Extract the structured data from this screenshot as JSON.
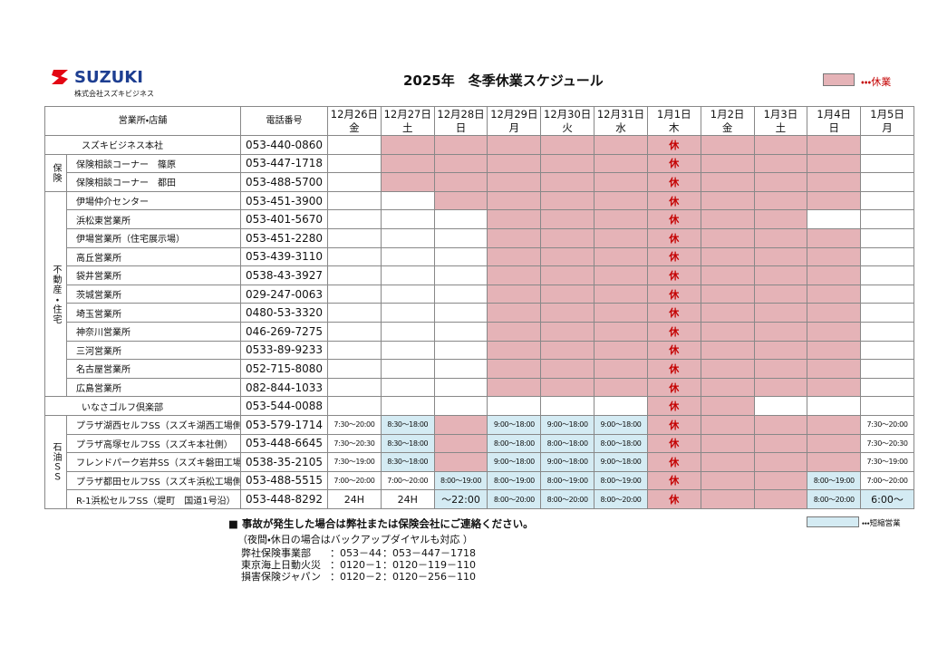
{
  "header": {
    "logo": "SUZUKI",
    "company": "株式会社スズキビジネス",
    "title": "2025年　冬季休業スケジュール",
    "legend_closed": "・・・休業"
  },
  "table": {
    "head_office": "営業所・店舗",
    "head_phone": "電話番号",
    "columns": [
      {
        "date": "12月26日",
        "weekday": "金"
      },
      {
        "date": "12月27日",
        "weekday": "土"
      },
      {
        "date": "12月28日",
        "weekday": "日"
      },
      {
        "date": "12月29日",
        "weekday": "月"
      },
      {
        "date": "12月30日",
        "weekday": "火"
      },
      {
        "date": "12月31日",
        "weekday": "水"
      },
      {
        "date": "1月1日",
        "weekday": "木"
      },
      {
        "date": "1月2日",
        "weekday": "金"
      },
      {
        "date": "1月3日",
        "weekday": "土"
      },
      {
        "date": "1月4日",
        "weekday": "日"
      },
      {
        "date": "1月5日",
        "weekday": "月"
      }
    ],
    "groups": [
      {
        "label": "保険",
        "rows": [
          1,
          2
        ]
      },
      {
        "label": "不動産・住宅",
        "rows": [
          3,
          13
        ]
      },
      {
        "label": "石油ＳＳ",
        "rows": [
          15,
          19
        ]
      }
    ],
    "rows": [
      {
        "name": "スズキビジネス本社",
        "phone": "053-440-0860",
        "cells": [
          {
            "state": "open"
          },
          {
            "state": "closed"
          },
          {
            "state": "closed"
          },
          {
            "state": "closed"
          },
          {
            "state": "closed"
          },
          {
            "state": "closed"
          },
          {
            "state": "closed",
            "text": "休"
          },
          {
            "state": "closed"
          },
          {
            "state": "closed"
          },
          {
            "state": "closed"
          },
          {
            "state": "open"
          }
        ]
      },
      {
        "name": "保険相談コーナー　篠原",
        "phone": "053-447-1718",
        "cells": [
          {
            "state": "open"
          },
          {
            "state": "closed"
          },
          {
            "state": "closed"
          },
          {
            "state": "closed"
          },
          {
            "state": "closed"
          },
          {
            "state": "closed"
          },
          {
            "state": "closed",
            "text": "休"
          },
          {
            "state": "closed"
          },
          {
            "state": "closed"
          },
          {
            "state": "closed"
          },
          {
            "state": "open"
          }
        ]
      },
      {
        "name": "保険相談コーナー　都田",
        "phone": "053-488-5700",
        "cells": [
          {
            "state": "open"
          },
          {
            "state": "closed"
          },
          {
            "state": "closed"
          },
          {
            "state": "closed"
          },
          {
            "state": "closed"
          },
          {
            "state": "closed"
          },
          {
            "state": "closed",
            "text": "休"
          },
          {
            "state": "closed"
          },
          {
            "state": "closed"
          },
          {
            "state": "closed"
          },
          {
            "state": "open"
          }
        ]
      },
      {
        "name": "伊場仲介センター",
        "phone": "053-451-3900",
        "cells": [
          {
            "state": "open"
          },
          {
            "state": "open"
          },
          {
            "state": "closed"
          },
          {
            "state": "closed"
          },
          {
            "state": "closed"
          },
          {
            "state": "closed"
          },
          {
            "state": "closed",
            "text": "休"
          },
          {
            "state": "closed"
          },
          {
            "state": "closed"
          },
          {
            "state": "closed"
          },
          {
            "state": "open"
          }
        ]
      },
      {
        "name": "浜松東営業所",
        "phone": "053-401-5670",
        "cells": [
          {
            "state": "open"
          },
          {
            "state": "open"
          },
          {
            "state": "open"
          },
          {
            "state": "closed"
          },
          {
            "state": "closed"
          },
          {
            "state": "closed"
          },
          {
            "state": "closed",
            "text": "休"
          },
          {
            "state": "closed"
          },
          {
            "state": "closed"
          },
          {
            "state": "open"
          },
          {
            "state": "open"
          }
        ]
      },
      {
        "name": "伊場営業所（住宅展示場）",
        "phone": "053-451-2280",
        "cells": [
          {
            "state": "open"
          },
          {
            "state": "open"
          },
          {
            "state": "open"
          },
          {
            "state": "closed"
          },
          {
            "state": "closed"
          },
          {
            "state": "closed"
          },
          {
            "state": "closed",
            "text": "休"
          },
          {
            "state": "closed"
          },
          {
            "state": "closed"
          },
          {
            "state": "closed"
          },
          {
            "state": "open"
          }
        ]
      },
      {
        "name": "高丘営業所",
        "phone": "053-439-3110",
        "cells": [
          {
            "state": "open"
          },
          {
            "state": "open"
          },
          {
            "state": "open"
          },
          {
            "state": "closed"
          },
          {
            "state": "closed"
          },
          {
            "state": "closed"
          },
          {
            "state": "closed",
            "text": "休"
          },
          {
            "state": "closed"
          },
          {
            "state": "closed"
          },
          {
            "state": "closed"
          },
          {
            "state": "open"
          }
        ]
      },
      {
        "name": "袋井営業所",
        "phone": "0538-43-3927",
        "cells": [
          {
            "state": "open"
          },
          {
            "state": "open"
          },
          {
            "state": "open"
          },
          {
            "state": "closed"
          },
          {
            "state": "closed"
          },
          {
            "state": "closed"
          },
          {
            "state": "closed",
            "text": "休"
          },
          {
            "state": "closed"
          },
          {
            "state": "closed"
          },
          {
            "state": "closed"
          },
          {
            "state": "open"
          }
        ]
      },
      {
        "name": "茨城営業所",
        "phone": "029-247-0063",
        "cells": [
          {
            "state": "open"
          },
          {
            "state": "open"
          },
          {
            "state": "open"
          },
          {
            "state": "closed"
          },
          {
            "state": "closed"
          },
          {
            "state": "closed"
          },
          {
            "state": "closed",
            "text": "休"
          },
          {
            "state": "closed"
          },
          {
            "state": "closed"
          },
          {
            "state": "closed"
          },
          {
            "state": "open"
          }
        ]
      },
      {
        "name": "埼玉営業所",
        "phone": "0480-53-3320",
        "cells": [
          {
            "state": "open"
          },
          {
            "state": "open"
          },
          {
            "state": "open"
          },
          {
            "state": "closed"
          },
          {
            "state": "closed"
          },
          {
            "state": "closed"
          },
          {
            "state": "closed",
            "text": "休"
          },
          {
            "state": "closed"
          },
          {
            "state": "closed"
          },
          {
            "state": "closed"
          },
          {
            "state": "open"
          }
        ]
      },
      {
        "name": "神奈川営業所",
        "phone": "046-269-7275",
        "cells": [
          {
            "state": "open"
          },
          {
            "state": "open"
          },
          {
            "state": "open"
          },
          {
            "state": "closed"
          },
          {
            "state": "closed"
          },
          {
            "state": "closed"
          },
          {
            "state": "closed",
            "text": "休"
          },
          {
            "state": "closed"
          },
          {
            "state": "closed"
          },
          {
            "state": "closed"
          },
          {
            "state": "open"
          }
        ]
      },
      {
        "name": "三河営業所",
        "phone": "0533-89-9233",
        "cells": [
          {
            "state": "open"
          },
          {
            "state": "open"
          },
          {
            "state": "open"
          },
          {
            "state": "closed"
          },
          {
            "state": "closed"
          },
          {
            "state": "closed"
          },
          {
            "state": "closed",
            "text": "休"
          },
          {
            "state": "closed"
          },
          {
            "state": "closed"
          },
          {
            "state": "closed"
          },
          {
            "state": "open"
          }
        ]
      },
      {
        "name": "名古屋営業所",
        "phone": "052-715-8080",
        "cells": [
          {
            "state": "open"
          },
          {
            "state": "open"
          },
          {
            "state": "open"
          },
          {
            "state": "closed"
          },
          {
            "state": "closed"
          },
          {
            "state": "closed"
          },
          {
            "state": "closed",
            "text": "休"
          },
          {
            "state": "closed"
          },
          {
            "state": "closed"
          },
          {
            "state": "closed"
          },
          {
            "state": "open"
          }
        ]
      },
      {
        "name": "広島営業所",
        "phone": "082-844-1033",
        "cells": [
          {
            "state": "open"
          },
          {
            "state": "open"
          },
          {
            "state": "open"
          },
          {
            "state": "closed"
          },
          {
            "state": "closed"
          },
          {
            "state": "closed"
          },
          {
            "state": "closed",
            "text": "休"
          },
          {
            "state": "closed"
          },
          {
            "state": "closed"
          },
          {
            "state": "closed"
          },
          {
            "state": "open"
          }
        ]
      },
      {
        "name": "いなさゴルフ倶楽部",
        "phone": "053-544-0088",
        "cells": [
          {
            "state": "open"
          },
          {
            "state": "open"
          },
          {
            "state": "open"
          },
          {
            "state": "open"
          },
          {
            "state": "open"
          },
          {
            "state": "open"
          },
          {
            "state": "closed",
            "text": "休"
          },
          {
            "state": "closed"
          },
          {
            "state": "open"
          },
          {
            "state": "open"
          },
          {
            "state": "open"
          }
        ]
      },
      {
        "name": "プラザ湖西セルフSS（スズキ湖西工場側）",
        "phone": "053-579-1714",
        "cells": [
          {
            "state": "open",
            "text": "7:30〜20:00"
          },
          {
            "state": "short",
            "text": "8:30〜18:00"
          },
          {
            "state": "closed"
          },
          {
            "state": "short",
            "text": "9:00〜18:00"
          },
          {
            "state": "short",
            "text": "9:00〜18:00"
          },
          {
            "state": "short",
            "text": "9:00〜18:00"
          },
          {
            "state": "closed",
            "text": "休"
          },
          {
            "state": "closed"
          },
          {
            "state": "closed"
          },
          {
            "state": "closed"
          },
          {
            "state": "open",
            "text": "7:30〜20:00"
          }
        ]
      },
      {
        "name": "プラザ高塚セルフSS（スズキ本社側）",
        "phone": "053-448-6645",
        "cells": [
          {
            "state": "open",
            "text": "7:30〜20:30"
          },
          {
            "state": "short",
            "text": "8:30〜18:00"
          },
          {
            "state": "closed"
          },
          {
            "state": "short",
            "text": "8:00〜18:00"
          },
          {
            "state": "short",
            "text": "8:00〜18:00"
          },
          {
            "state": "short",
            "text": "8:00〜18:00"
          },
          {
            "state": "closed",
            "text": "休"
          },
          {
            "state": "closed"
          },
          {
            "state": "closed"
          },
          {
            "state": "closed"
          },
          {
            "state": "open",
            "text": "7:30〜20:30"
          }
        ]
      },
      {
        "name": "フレンドパーク岩井SS（スズキ磐田工場側）",
        "phone": "0538-35-2105",
        "cells": [
          {
            "state": "open",
            "text": "7:30〜19:00"
          },
          {
            "state": "short",
            "text": "8:30〜18:00"
          },
          {
            "state": "closed"
          },
          {
            "state": "short",
            "text": "9:00〜18:00"
          },
          {
            "state": "short",
            "text": "9:00〜18:00"
          },
          {
            "state": "short",
            "text": "9:00〜18:00"
          },
          {
            "state": "closed",
            "text": "休"
          },
          {
            "state": "closed"
          },
          {
            "state": "closed"
          },
          {
            "state": "closed"
          },
          {
            "state": "open",
            "text": "7:30〜19:00"
          }
        ]
      },
      {
        "name": "プラザ都田セルフSS（スズキ浜松工場側）",
        "phone": "053-488-5515",
        "cells": [
          {
            "state": "open",
            "text": "7:00〜20:00"
          },
          {
            "state": "open",
            "text": "7:00〜20:00"
          },
          {
            "state": "short",
            "text": "8:00〜19:00"
          },
          {
            "state": "short",
            "text": "8:00〜19:00"
          },
          {
            "state": "short",
            "text": "8:00〜19:00"
          },
          {
            "state": "short",
            "text": "8:00〜19:00"
          },
          {
            "state": "closed",
            "text": "休"
          },
          {
            "state": "closed"
          },
          {
            "state": "closed"
          },
          {
            "state": "short",
            "text": "8:00〜19:00"
          },
          {
            "state": "open",
            "text": "7:00〜20:00"
          }
        ]
      },
      {
        "name": "R-1浜松セルフSS（堤町　国道1号沿）",
        "phone": "053-448-8292",
        "cells": [
          {
            "state": "open",
            "text": "24H"
          },
          {
            "state": "open",
            "text": "24H"
          },
          {
            "state": "short",
            "text": "〜22:00"
          },
          {
            "state": "short",
            "text": "8:00〜20:00"
          },
          {
            "state": "short",
            "text": "8:00〜20:00"
          },
          {
            "state": "short",
            "text": "8:00〜20:00"
          },
          {
            "state": "closed",
            "text": "休"
          },
          {
            "state": "closed"
          },
          {
            "state": "closed"
          },
          {
            "state": "short",
            "text": "8:00〜20:00"
          },
          {
            "state": "short",
            "text": "6:00〜"
          }
        ]
      }
    ]
  },
  "colors": {
    "closed": "#e5b3b7",
    "short": "#d4ebf3",
    "open": "#ffffff"
  },
  "footer": {
    "notice": "■ 事故が発生した場合は弊社または保険会社にご連絡ください。",
    "note": "（夜間・休日の場合はバックアップダイヤルも対応 ）",
    "contacts": [
      {
        "name": "弊社保険事業部",
        "phone": "：053－44",
        "backup": "：053－447－1718"
      },
      {
        "name": "東京海上日動火災",
        "phone": "：0120－1",
        "backup": "：0120－119－110"
      },
      {
        "name": "損害保険ジャパン",
        "phone": "：0120－2",
        "backup": "：0120－256－110"
      }
    ],
    "legend_short": "・・・短縮営業"
  }
}
